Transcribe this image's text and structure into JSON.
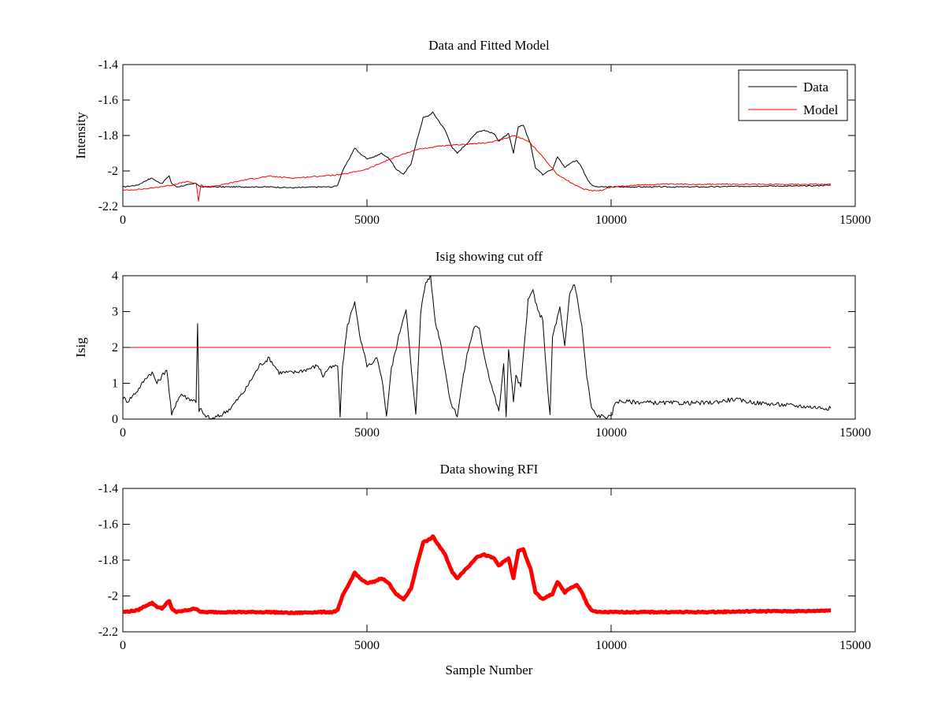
{
  "chart_data": [
    {
      "type": "line",
      "title": "Data and Fitted Model",
      "xlabel": "",
      "ylabel": "Intensity",
      "xlim": [
        0,
        15000
      ],
      "ylim": [
        -2.2,
        -1.4
      ],
      "xticks": [
        0,
        5000,
        10000,
        15000
      ],
      "yticks": [
        -2.2,
        -2,
        -1.8,
        -1.6,
        -1.4
      ],
      "ytick_labels": [
        "-2.2",
        "-2",
        "-1.8",
        "-1.6",
        "-1.4"
      ],
      "legend": {
        "position": "top-right",
        "entries": [
          "Data",
          "Model"
        ]
      },
      "series": [
        {
          "name": "Data",
          "color": "#000000",
          "x": [
            0,
            300,
            500,
            600,
            700,
            800,
            900,
            950,
            1000,
            1100,
            1300,
            1500,
            1600,
            1800,
            2500,
            3000,
            3500,
            4000,
            4300,
            4400,
            4500,
            4600,
            4750,
            4850,
            5000,
            5150,
            5300,
            5450,
            5600,
            5750,
            5900,
            6050,
            6150,
            6250,
            6350,
            6450,
            6600,
            6750,
            6850,
            6950,
            7100,
            7250,
            7400,
            7600,
            7700,
            7800,
            7900,
            8000,
            8100,
            8200,
            8350,
            8450,
            8600,
            8700,
            8800,
            8900,
            9050,
            9200,
            9300,
            9400,
            9500,
            9600,
            9700,
            10000,
            11000,
            12000,
            13000,
            14000,
            14500
          ],
          "y": [
            -2.09,
            -2.08,
            -2.05,
            -2.04,
            -2.06,
            -2.07,
            -2.04,
            -2.03,
            -2.07,
            -2.09,
            -2.08,
            -2.07,
            -2.09,
            -2.09,
            -2.09,
            -2.09,
            -2.095,
            -2.09,
            -2.09,
            -2.08,
            -2.0,
            -1.95,
            -1.87,
            -1.9,
            -1.93,
            -1.92,
            -1.9,
            -1.93,
            -1.99,
            -2.02,
            -1.96,
            -1.8,
            -1.7,
            -1.69,
            -1.67,
            -1.71,
            -1.77,
            -1.87,
            -1.9,
            -1.87,
            -1.83,
            -1.78,
            -1.77,
            -1.79,
            -1.83,
            -1.81,
            -1.79,
            -1.9,
            -1.75,
            -1.74,
            -1.85,
            -1.98,
            -2.02,
            -2.0,
            -1.99,
            -1.92,
            -1.98,
            -1.95,
            -1.94,
            -1.98,
            -2.04,
            -2.08,
            -2.09,
            -2.09,
            -2.09,
            -2.09,
            -2.085,
            -2.085,
            -2.08
          ]
        },
        {
          "name": "Model",
          "color": "#ff0000",
          "x": [
            0,
            500,
            1000,
            1300,
            1500,
            1550,
            1600,
            1700,
            2000,
            2500,
            3000,
            3500,
            4000,
            4500,
            5000,
            5500,
            6000,
            6500,
            7000,
            7500,
            7800,
            8000,
            8300,
            8600,
            8900,
            9200,
            9400,
            9600,
            9800,
            10000,
            10500,
            11000,
            12000,
            13000,
            14500
          ],
          "y": [
            -2.11,
            -2.1,
            -2.08,
            -2.06,
            -2.07,
            -2.17,
            -2.08,
            -2.09,
            -2.08,
            -2.05,
            -2.03,
            -2.04,
            -2.03,
            -2.02,
            -1.99,
            -1.93,
            -1.88,
            -1.86,
            -1.85,
            -1.84,
            -1.82,
            -1.8,
            -1.83,
            -1.92,
            -2.02,
            -2.07,
            -2.1,
            -2.11,
            -2.11,
            -2.09,
            -2.08,
            -2.075,
            -2.075,
            -2.075,
            -2.075
          ]
        }
      ]
    },
    {
      "type": "line",
      "title": "Isig showing cut off",
      "xlabel": "",
      "ylabel": "Isig",
      "xlim": [
        0,
        15000
      ],
      "ylim": [
        0,
        4
      ],
      "xticks": [
        0,
        5000,
        10000,
        15000
      ],
      "yticks": [
        0,
        1,
        2,
        3,
        4
      ],
      "ytick_labels": [
        "0",
        "1",
        "2",
        "3",
        "4"
      ],
      "series": [
        {
          "color": "#000000",
          "x": [
            0,
            100,
            300,
            500,
            600,
            700,
            800,
            900,
            1000,
            1100,
            1200,
            1300,
            1500,
            1530,
            1560,
            1600,
            1650,
            1700,
            1800,
            2000,
            2200,
            2500,
            2800,
            3000,
            3200,
            3500,
            3800,
            4000,
            4100,
            4200,
            4400,
            4450,
            4500,
            4600,
            4750,
            4850,
            5000,
            5100,
            5200,
            5300,
            5400,
            5500,
            5700,
            5800,
            5900,
            6000,
            6100,
            6200,
            6300,
            6400,
            6500,
            6600,
            6700,
            6850,
            6950,
            7050,
            7200,
            7300,
            7400,
            7500,
            7600,
            7700,
            7800,
            7850,
            7900,
            8000,
            8050,
            8150,
            8300,
            8400,
            8500,
            8600,
            8700,
            8750,
            8800,
            8950,
            9050,
            9150,
            9250,
            9400,
            9500,
            9600,
            9700,
            10000,
            10050,
            10100,
            11000,
            12000,
            12500,
            13000,
            14000,
            14500
          ],
          "y": [
            0.6,
            0.5,
            0.8,
            1.2,
            1.3,
            1.0,
            1.2,
            1.4,
            0.1,
            0.5,
            0.7,
            0.6,
            0.5,
            2.7,
            0.2,
            0.3,
            0.1,
            0.1,
            0.0,
            0.1,
            0.3,
            0.8,
            1.5,
            1.7,
            1.3,
            1.3,
            1.4,
            1.5,
            1.2,
            1.4,
            1.5,
            0.1,
            1.5,
            2.6,
            3.3,
            2.3,
            1.5,
            1.5,
            1.7,
            1.2,
            0.1,
            1.4,
            2.6,
            3.1,
            1.5,
            0.1,
            3.0,
            3.8,
            4.0,
            2.7,
            2.2,
            1.4,
            0.5,
            0.1,
            1.0,
            1.8,
            2.6,
            2.5,
            1.8,
            1.2,
            0.7,
            0.2,
            1.5,
            0.1,
            2.0,
            0.5,
            1.2,
            0.9,
            3.3,
            3.6,
            3.0,
            2.8,
            0.8,
            0.1,
            2.3,
            3.1,
            2.0,
            3.5,
            3.8,
            2.6,
            1.2,
            0.3,
            0.1,
            0.05,
            0.3,
            0.5,
            0.45,
            0.45,
            0.55,
            0.45,
            0.35,
            0.3
          ]
        },
        {
          "color": "#ff0000",
          "x": [
            0,
            14500
          ],
          "y": [
            2,
            2
          ]
        }
      ]
    },
    {
      "type": "line",
      "title": "Data showing RFI",
      "xlabel": "Sample Number",
      "ylabel": "",
      "xlim": [
        0,
        15000
      ],
      "ylim": [
        -2.2,
        -1.4
      ],
      "xticks": [
        0,
        5000,
        10000,
        15000
      ],
      "yticks": [
        -2.2,
        -2,
        -1.8,
        -1.6,
        -1.4
      ],
      "ytick_labels": [
        "-2.2",
        "-2",
        "-1.8",
        "-1.6",
        "-1.4"
      ],
      "series": [
        {
          "color": "#ff0000",
          "x": [
            0,
            300,
            500,
            600,
            700,
            800,
            900,
            950,
            1000,
            1100,
            1300,
            1500,
            1600,
            1800,
            2500,
            3000,
            3500,
            4000,
            4300,
            4400,
            4500,
            4600,
            4750,
            4850,
            5000,
            5150,
            5300,
            5450,
            5600,
            5750,
            5900,
            6050,
            6150,
            6250,
            6350,
            6450,
            6600,
            6750,
            6850,
            6950,
            7100,
            7250,
            7400,
            7600,
            7700,
            7800,
            7900,
            8000,
            8100,
            8200,
            8350,
            8450,
            8600,
            8700,
            8800,
            8900,
            9050,
            9200,
            9300,
            9400,
            9500,
            9600,
            9700,
            10000,
            11000,
            12000,
            13000,
            14000,
            14500
          ],
          "y": [
            -2.09,
            -2.08,
            -2.05,
            -2.04,
            -2.06,
            -2.07,
            -2.04,
            -2.03,
            -2.07,
            -2.09,
            -2.08,
            -2.07,
            -2.09,
            -2.09,
            -2.09,
            -2.09,
            -2.095,
            -2.09,
            -2.09,
            -2.08,
            -2.0,
            -1.95,
            -1.87,
            -1.9,
            -1.93,
            -1.92,
            -1.9,
            -1.93,
            -1.99,
            -2.02,
            -1.96,
            -1.8,
            -1.7,
            -1.69,
            -1.67,
            -1.71,
            -1.77,
            -1.87,
            -1.9,
            -1.87,
            -1.83,
            -1.78,
            -1.77,
            -1.79,
            -1.83,
            -1.81,
            -1.79,
            -1.9,
            -1.75,
            -1.74,
            -1.85,
            -1.98,
            -2.02,
            -2.0,
            -1.99,
            -1.92,
            -1.98,
            -1.95,
            -1.94,
            -1.98,
            -2.04,
            -2.08,
            -2.09,
            -2.09,
            -2.09,
            -2.09,
            -2.085,
            -2.085,
            -2.08
          ]
        }
      ]
    }
  ]
}
